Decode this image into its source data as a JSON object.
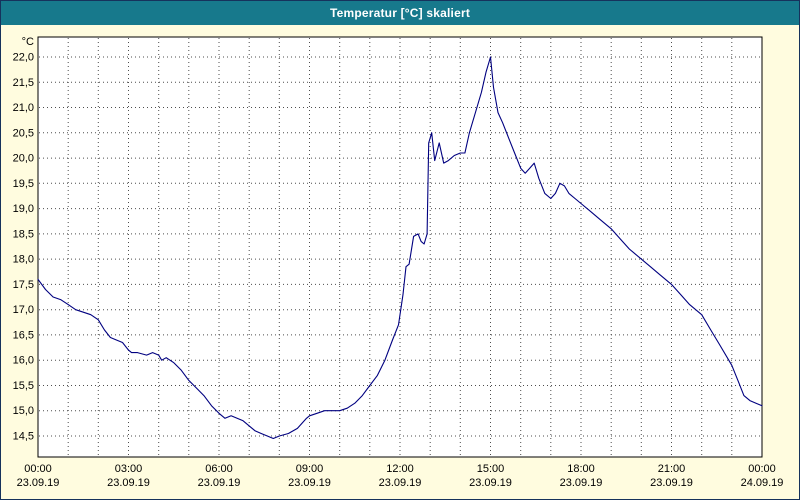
{
  "window": {
    "title": "Temperatur [°C] skaliert"
  },
  "chart_data": {
    "type": "line",
    "title": "Temperatur [°C] skaliert",
    "ylabel": "°C",
    "ylim": [
      14.5,
      22.0
    ],
    "ytick_step": 0.5,
    "grid": "dotted, hourly vertical lines and 0.5°C horizontal lines",
    "legend_position": "none",
    "y_ticks": [
      {
        "label": "22,0",
        "value": 22.0
      },
      {
        "label": "21,5",
        "value": 21.5
      },
      {
        "label": "21,0",
        "value": 21.0
      },
      {
        "label": "20,5",
        "value": 20.5
      },
      {
        "label": "20,0",
        "value": 20.0
      },
      {
        "label": "19,5",
        "value": 19.5
      },
      {
        "label": "19,0",
        "value": 19.0
      },
      {
        "label": "18,5",
        "value": 18.5
      },
      {
        "label": "18,0",
        "value": 18.0
      },
      {
        "label": "17,5",
        "value": 17.5
      },
      {
        "label": "17,0",
        "value": 17.0
      },
      {
        "label": "16,5",
        "value": 16.5
      },
      {
        "label": "16,0",
        "value": 16.0
      },
      {
        "label": "15,5",
        "value": 15.5
      },
      {
        "label": "15,0",
        "value": 15.0
      },
      {
        "label": "14,5",
        "value": 14.5
      }
    ],
    "x_ticks": [
      {
        "hour": 0,
        "time": "00:00",
        "date": "23.09.19"
      },
      {
        "hour": 3,
        "time": "03:00",
        "date": "23.09.19"
      },
      {
        "hour": 6,
        "time": "06:00",
        "date": "23.09.19"
      },
      {
        "hour": 9,
        "time": "09:00",
        "date": "23.09.19"
      },
      {
        "hour": 12,
        "time": "12:00",
        "date": "23.09.19"
      },
      {
        "hour": 15,
        "time": "15:00",
        "date": "23.09.19"
      },
      {
        "hour": 18,
        "time": "18:00",
        "date": "23.09.19"
      },
      {
        "hour": 21,
        "time": "21:00",
        "date": "23.09.19"
      },
      {
        "hour": 24,
        "time": "00:00",
        "date": "24.09.19"
      }
    ],
    "x_range_hours": [
      0,
      24
    ],
    "series": [
      {
        "name": "Temperatur [°C]",
        "color": "#000080",
        "x": [
          0,
          0.25,
          0.5,
          0.75,
          1.0,
          1.25,
          1.5,
          1.75,
          2.0,
          2.2,
          2.4,
          2.6,
          2.8,
          3.0,
          3.1,
          3.3,
          3.6,
          3.8,
          4.0,
          4.1,
          4.25,
          4.5,
          4.75,
          5.0,
          5.25,
          5.5,
          5.75,
          6.0,
          6.2,
          6.4,
          6.6,
          6.8,
          7.0,
          7.2,
          7.4,
          7.6,
          7.8,
          8.0,
          8.3,
          8.6,
          8.9,
          9.0,
          9.25,
          9.5,
          10.0,
          10.25,
          10.5,
          10.75,
          11.0,
          11.25,
          11.5,
          11.75,
          11.95,
          12.1,
          12.2,
          12.3,
          12.45,
          12.6,
          12.7,
          12.8,
          12.9,
          12.95,
          13.05,
          13.15,
          13.3,
          13.45,
          13.6,
          13.8,
          14.0,
          14.15,
          14.3,
          14.5,
          14.7,
          14.85,
          14.95,
          15.0,
          15.1,
          15.25,
          15.4,
          15.6,
          15.8,
          16.0,
          16.15,
          16.3,
          16.45,
          16.6,
          16.8,
          17.0,
          17.15,
          17.3,
          17.45,
          17.6,
          17.8,
          18.0,
          18.3,
          18.6,
          19.0,
          19.3,
          19.6,
          20.0,
          20.3,
          20.6,
          21.0,
          21.3,
          21.6,
          22.0,
          22.3,
          22.6,
          23.0,
          23.2,
          23.4,
          23.6,
          23.8,
          24.0
        ],
        "y": [
          17.6,
          17.4,
          17.25,
          17.2,
          17.1,
          17.0,
          16.95,
          16.9,
          16.8,
          16.6,
          16.45,
          16.4,
          16.35,
          16.2,
          16.15,
          16.15,
          16.1,
          16.15,
          16.1,
          16.0,
          16.05,
          15.95,
          15.8,
          15.6,
          15.45,
          15.3,
          15.1,
          14.95,
          14.85,
          14.9,
          14.85,
          14.8,
          14.7,
          14.6,
          14.55,
          14.5,
          14.45,
          14.5,
          14.55,
          14.65,
          14.85,
          14.9,
          14.95,
          15.0,
          15.0,
          15.05,
          15.15,
          15.3,
          15.5,
          15.7,
          16.0,
          16.4,
          16.7,
          17.3,
          17.85,
          17.9,
          18.45,
          18.5,
          18.35,
          18.3,
          18.5,
          20.3,
          20.5,
          19.95,
          20.3,
          19.9,
          19.95,
          20.05,
          20.1,
          20.1,
          20.5,
          20.9,
          21.3,
          21.7,
          21.9,
          22.0,
          21.4,
          20.9,
          20.7,
          20.4,
          20.1,
          19.8,
          19.7,
          19.8,
          19.9,
          19.6,
          19.3,
          19.2,
          19.3,
          19.5,
          19.45,
          19.3,
          19.2,
          19.1,
          18.95,
          18.8,
          18.6,
          18.4,
          18.2,
          18.0,
          17.85,
          17.7,
          17.5,
          17.3,
          17.1,
          16.9,
          16.6,
          16.3,
          15.9,
          15.6,
          15.3,
          15.2,
          15.15,
          15.1
        ]
      }
    ],
    "colors": {
      "titlebar_bg": "#17798c",
      "titlebar_text": "#ffffff",
      "window_bg": "#fffcdf",
      "plot_bg": "#ffffff",
      "plot_border": "#000000",
      "grid": "#4d4d4d",
      "axis_text": "#000000",
      "line": "#000080"
    }
  }
}
